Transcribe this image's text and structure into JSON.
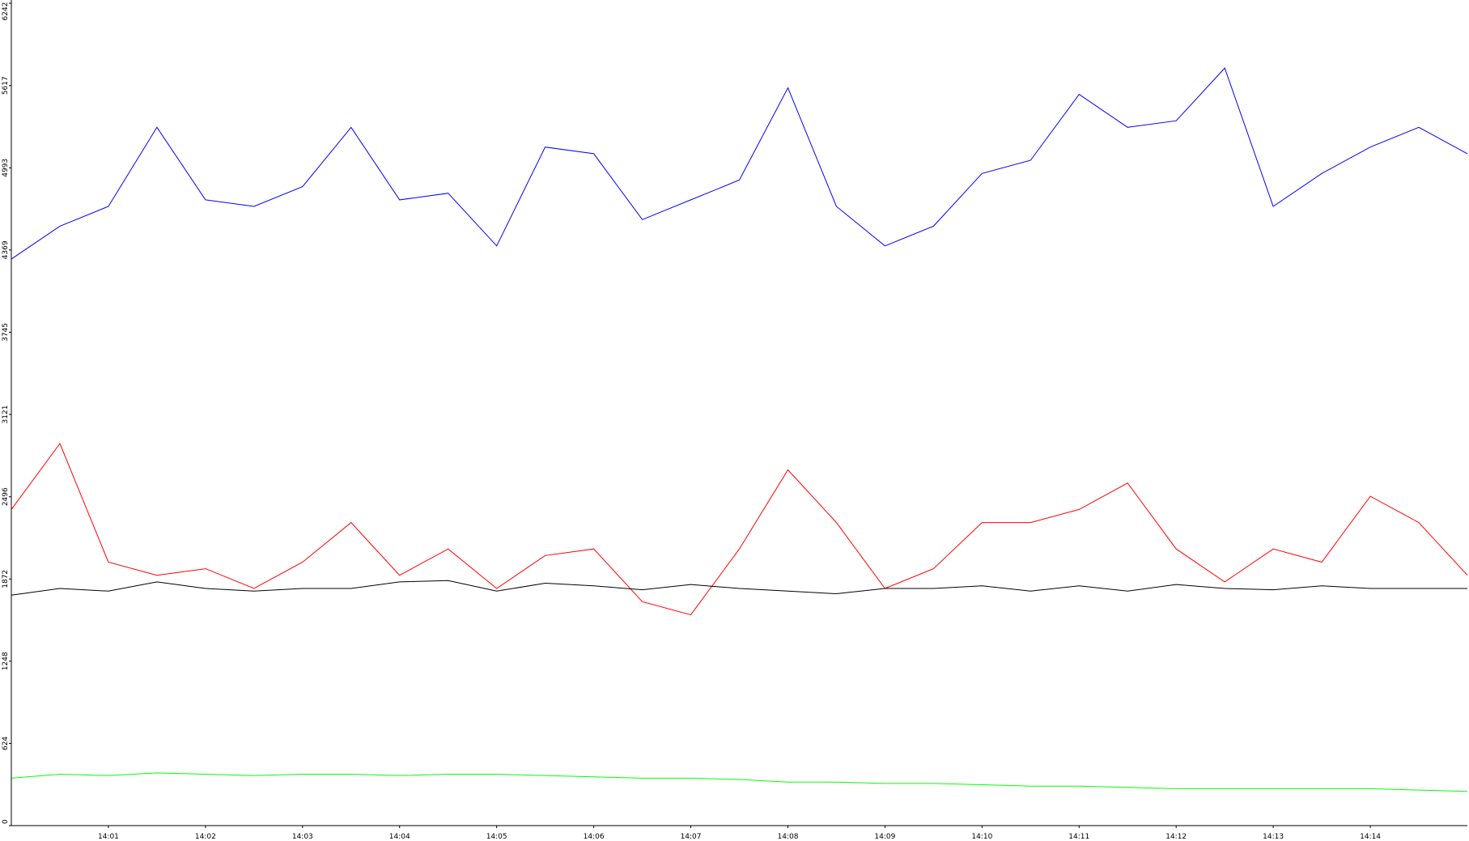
{
  "chart_data": {
    "type": "line",
    "title": "",
    "xlabel": "",
    "ylabel": "",
    "ylim": [
      0,
      6242
    ],
    "xlim": [
      "14:00:00",
      "14:15:00"
    ],
    "grid": false,
    "legend": "none",
    "y_ticks": [
      "0",
      "624",
      "1248",
      "1872",
      "2496",
      "3121",
      "3745",
      "4369",
      "4993",
      "5617",
      "6242"
    ],
    "y_tick_values": [
      0,
      624,
      1248,
      1872,
      2496,
      3121,
      3745,
      4369,
      4993,
      5617,
      6242
    ],
    "x_ticks": [
      "14:01",
      "14:02",
      "14:03",
      "14:04",
      "14:05",
      "14:06",
      "14:07",
      "14:08",
      "14:09",
      "14:10",
      "14:11",
      "14:12",
      "14:13",
      "14:14"
    ],
    "x_tick_minutes": [
      1,
      2,
      3,
      4,
      5,
      6,
      7,
      8,
      9,
      10,
      11,
      12,
      13,
      14
    ],
    "series": [
      {
        "color": "#0000ff",
        "t": [
          "14:00:00",
          "14:00:30",
          "14:01:00",
          "14:01:30",
          "14:02:00",
          "14:02:30",
          "14:03:00",
          "14:03:30",
          "14:04:00",
          "14:04:30",
          "14:05:00",
          "14:05:30",
          "14:06:00",
          "14:06:30",
          "14:07:00",
          "14:07:30",
          "14:08:00",
          "14:08:30",
          "14:09:00",
          "14:09:30",
          "14:10:00",
          "14:10:30",
          "14:11:00",
          "14:11:30",
          "14:12:00",
          "14:12:30",
          "14:13:00",
          "14:13:30",
          "14:14:00",
          "14:14:30",
          "14:15:00"
        ],
        "values": [
          4300,
          4550,
          4700,
          5300,
          4750,
          4700,
          4850,
          5300,
          4750,
          4800,
          4400,
          5150,
          5100,
          4600,
          4750,
          4900,
          5600,
          4700,
          4400,
          4550,
          4950,
          5050,
          5550,
          5300,
          5350,
          5750,
          4700,
          4950,
          5150,
          5300,
          5100
        ]
      },
      {
        "color": "#ff0000",
        "t": [
          "14:00:00",
          "14:00:30",
          "14:01:00",
          "14:01:30",
          "14:02:00",
          "14:02:30",
          "14:03:00",
          "14:03:30",
          "14:04:00",
          "14:04:30",
          "14:05:00",
          "14:05:30",
          "14:06:00",
          "14:06:30",
          "14:07:00",
          "14:07:30",
          "14:08:00",
          "14:08:30",
          "14:09:00",
          "14:09:30",
          "14:10:00",
          "14:10:30",
          "14:11:00",
          "14:11:30",
          "14:12:00",
          "14:12:30",
          "14:13:00",
          "14:13:30",
          "14:14:00",
          "14:14:30",
          "14:15:00"
        ],
        "values": [
          2400,
          2900,
          2000,
          1900,
          1950,
          1800,
          2000,
          2300,
          1900,
          2100,
          1800,
          2050,
          2100,
          1700,
          1600,
          2100,
          2700,
          2300,
          1800,
          1950,
          2300,
          2300,
          2400,
          2600,
          2100,
          1850,
          2100,
          2000,
          2500,
          2300,
          1900
        ]
      },
      {
        "color": "#000000",
        "t": [
          "14:00:00",
          "14:00:30",
          "14:01:00",
          "14:01:30",
          "14:02:00",
          "14:02:30",
          "14:03:00",
          "14:03:30",
          "14:04:00",
          "14:04:30",
          "14:05:00",
          "14:05:30",
          "14:06:00",
          "14:06:30",
          "14:07:00",
          "14:07:30",
          "14:08:00",
          "14:08:30",
          "14:09:00",
          "14:09:30",
          "14:10:00",
          "14:10:30",
          "14:11:00",
          "14:11:30",
          "14:12:00",
          "14:12:30",
          "14:13:00",
          "14:13:30",
          "14:14:00",
          "14:14:30",
          "14:15:00"
        ],
        "values": [
          1750,
          1800,
          1780,
          1850,
          1800,
          1780,
          1800,
          1800,
          1850,
          1860,
          1780,
          1840,
          1820,
          1790,
          1830,
          1800,
          1780,
          1760,
          1800,
          1800,
          1820,
          1780,
          1820,
          1780,
          1830,
          1800,
          1790,
          1820,
          1800,
          1800,
          1800
        ]
      },
      {
        "color": "#00ff00",
        "t": [
          "14:00:00",
          "14:00:30",
          "14:01:00",
          "14:01:30",
          "14:02:00",
          "14:02:30",
          "14:03:00",
          "14:03:30",
          "14:04:00",
          "14:04:30",
          "14:05:00",
          "14:05:30",
          "14:06:00",
          "14:06:30",
          "14:07:00",
          "14:07:30",
          "14:08:00",
          "14:08:30",
          "14:09:00",
          "14:09:30",
          "14:10:00",
          "14:10:30",
          "14:11:00",
          "14:11:30",
          "14:12:00",
          "14:12:30",
          "14:13:00",
          "14:13:30",
          "14:14:00",
          "14:14:30",
          "14:15:00"
        ],
        "values": [
          360,
          390,
          380,
          400,
          390,
          380,
          390,
          390,
          380,
          390,
          390,
          380,
          370,
          360,
          360,
          350,
          330,
          330,
          320,
          320,
          310,
          300,
          300,
          290,
          280,
          280,
          280,
          280,
          280,
          270,
          260
        ]
      }
    ]
  }
}
